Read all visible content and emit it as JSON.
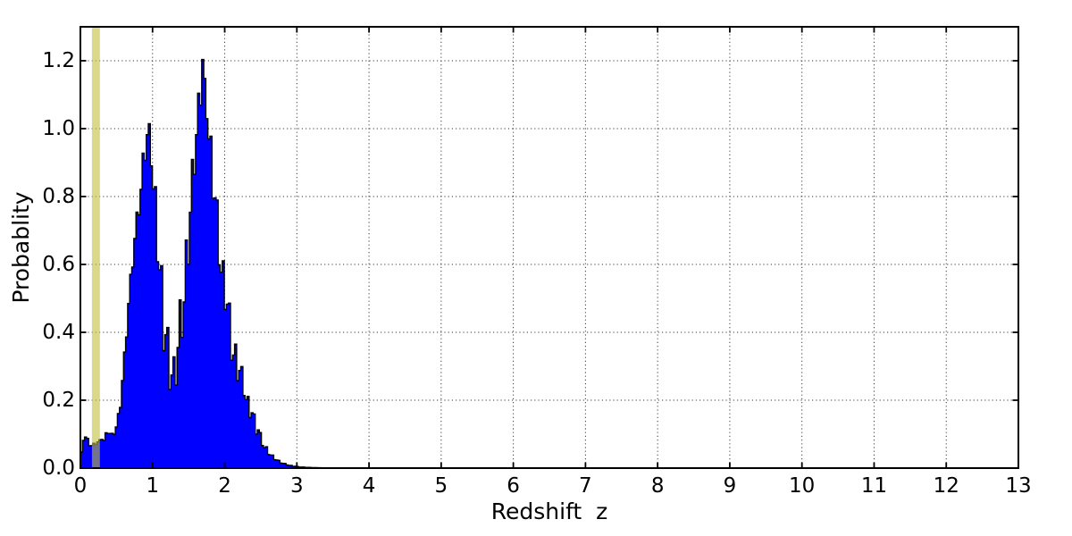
{
  "chart_data": {
    "type": "area",
    "title": "",
    "xlabel": "Redshift  z",
    "ylabel": "Probablity",
    "xlim": [
      0,
      13
    ],
    "ylim": [
      0,
      1.3
    ],
    "xticks": [
      "0",
      "1",
      "2",
      "3",
      "4",
      "5",
      "6",
      "7",
      "8",
      "9",
      "10",
      "11",
      "12",
      "13"
    ],
    "xtick_values": [
      0,
      1,
      2,
      3,
      4,
      5,
      6,
      7,
      8,
      9,
      10,
      11,
      12,
      13
    ],
    "yticks": [
      "0.0",
      "0.2",
      "0.4",
      "0.6",
      "0.8",
      "1.0",
      "1.2"
    ],
    "ytick_values": [
      0.0,
      0.2,
      0.4,
      0.6,
      0.8,
      1.0,
      1.2
    ],
    "grid": {
      "style": "dotted",
      "color": "#3a3a3a",
      "on": true
    },
    "legend": null,
    "colors": {
      "fill": "#0000ff",
      "outline": "#000000",
      "band": "#bfbf3b",
      "band_alpha": 0.6,
      "frame": "#000000",
      "background": "#ffffff"
    },
    "highlight_band": {
      "x_start": 0.16,
      "x_end": 0.27,
      "label": "marker band near z=0.21"
    },
    "peaks": [
      {
        "z": 0.93,
        "p_max": 1.08
      },
      {
        "z": 1.7,
        "p_max": 1.235
      }
    ],
    "series": [
      {
        "name": "photo-z probability density (spiky histogram: lower/upper envelopes)",
        "x": [
          0.0,
          0.02,
          0.04,
          0.07,
          0.1,
          0.13,
          0.16,
          0.2,
          0.24,
          0.28,
          0.31,
          0.33,
          0.36,
          0.4,
          0.44,
          0.48,
          0.52,
          0.56,
          0.6,
          0.65,
          0.7,
          0.75,
          0.8,
          0.85,
          0.88,
          0.9,
          0.93,
          0.95,
          0.98,
          1.0,
          1.05,
          1.1,
          1.15,
          1.2,
          1.25,
          1.3,
          1.35,
          1.4,
          1.45,
          1.5,
          1.55,
          1.6,
          1.65,
          1.68,
          1.7,
          1.72,
          1.75,
          1.8,
          1.85,
          1.9,
          1.95,
          2.0,
          2.05,
          2.1,
          2.15,
          2.2,
          2.25,
          2.3,
          2.35,
          2.4,
          2.45,
          2.5,
          2.55,
          2.6,
          2.7,
          2.8,
          2.9,
          3.0,
          3.1,
          3.25,
          3.5
        ],
        "lower": [
          0.0,
          0.055,
          0.08,
          0.085,
          0.078,
          0.062,
          0.06,
          0.065,
          0.07,
          0.075,
          0.085,
          0.072,
          0.095,
          0.1,
          0.09,
          0.1,
          0.13,
          0.18,
          0.27,
          0.4,
          0.52,
          0.63,
          0.72,
          0.8,
          0.85,
          0.88,
          0.93,
          0.915,
          0.87,
          0.79,
          0.65,
          0.5,
          0.33,
          0.22,
          0.18,
          0.17,
          0.22,
          0.3,
          0.42,
          0.6,
          0.75,
          0.9,
          1.0,
          1.08,
          1.17,
          1.06,
          1.01,
          0.85,
          0.72,
          0.6,
          0.5,
          0.43,
          0.37,
          0.3,
          0.26,
          0.23,
          0.2,
          0.16,
          0.13,
          0.11,
          0.09,
          0.065,
          0.05,
          0.038,
          0.02,
          0.011,
          0.006,
          0.0035,
          0.002,
          0.001,
          0.0
        ],
        "upper": [
          0.004,
          0.065,
          0.09,
          0.095,
          0.088,
          0.072,
          0.07,
          0.075,
          0.08,
          0.085,
          0.095,
          0.085,
          0.108,
          0.112,
          0.102,
          0.115,
          0.15,
          0.21,
          0.31,
          0.45,
          0.58,
          0.69,
          0.79,
          0.89,
          0.96,
          1.0,
          1.075,
          1.03,
          0.98,
          0.95,
          0.8,
          0.65,
          0.55,
          0.45,
          0.36,
          0.33,
          0.45,
          0.55,
          0.64,
          0.76,
          0.9,
          1.05,
          1.13,
          1.19,
          1.235,
          1.16,
          1.11,
          1.0,
          0.9,
          0.78,
          0.68,
          0.58,
          0.52,
          0.42,
          0.37,
          0.33,
          0.29,
          0.23,
          0.19,
          0.17,
          0.14,
          0.1,
          0.075,
          0.055,
          0.03,
          0.017,
          0.009,
          0.005,
          0.003,
          0.0015,
          0.0
        ]
      }
    ]
  }
}
